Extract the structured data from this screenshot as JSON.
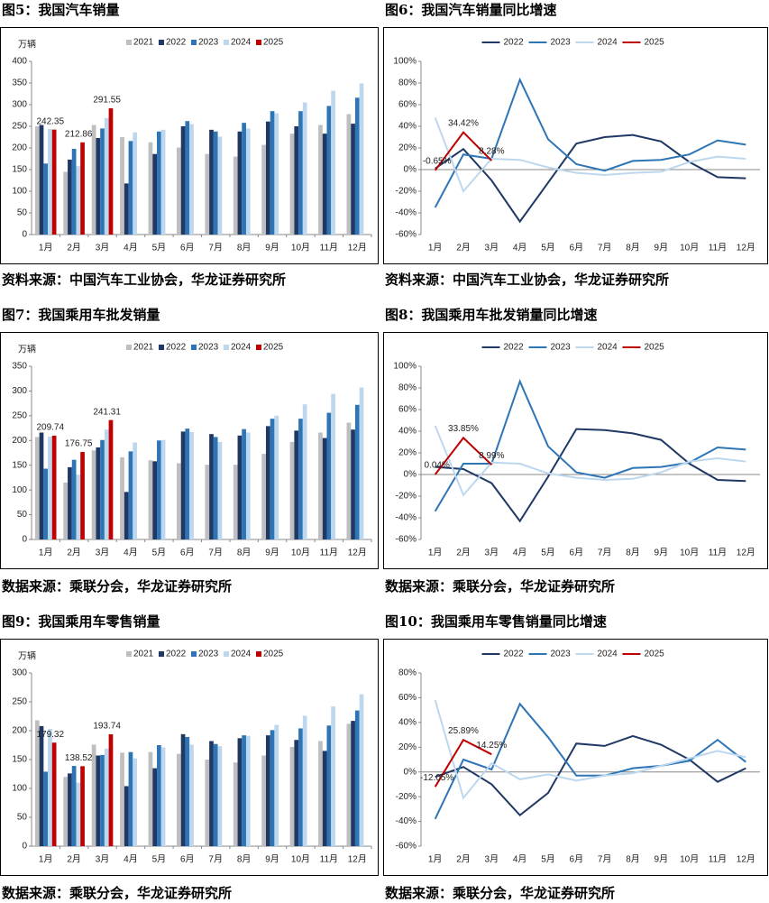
{
  "chart_data": [
    {
      "type": "bar",
      "title": "图5：我国汽车销量",
      "source": "资料来源：中国汽车工业协会，华龙证券研究所",
      "y_label": "万辆",
      "categories": [
        "1月",
        "2月",
        "3月",
        "4月",
        "5月",
        "6月",
        "7月",
        "8月",
        "9月",
        "10月",
        "11月",
        "12月"
      ],
      "series": [
        {
          "name": "2021",
          "color": "#bfbfbf",
          "values": [
            250,
            145,
            253,
            225,
            213,
            201,
            186,
            180,
            207,
            233,
            253,
            278
          ]
        },
        {
          "name": "2022",
          "color": "#1f3864",
          "values": [
            253,
            173,
            223,
            118,
            186,
            250,
            242,
            238,
            261,
            250,
            233,
            256
          ]
        },
        {
          "name": "2023",
          "color": "#2e75b6",
          "values": [
            164,
            198,
            245,
            216,
            238,
            262,
            238,
            258,
            285,
            285,
            297,
            316
          ]
        },
        {
          "name": "2024",
          "color": "#bdd7ee",
          "values": [
            244,
            158,
            269,
            236,
            242,
            255,
            226,
            245,
            280,
            305,
            332,
            349
          ]
        },
        {
          "name": "2025",
          "color": "#c00000",
          "values": [
            242.35,
            212.86,
            291.55,
            null,
            null,
            null,
            null,
            null,
            null,
            null,
            null,
            null
          ]
        }
      ],
      "ylim": [
        0,
        400
      ],
      "yticks": [
        0,
        50,
        100,
        150,
        200,
        250,
        300,
        350,
        400
      ],
      "grid": false,
      "legend": "top"
    },
    {
      "type": "line",
      "title": "图6：我国汽车销量同比增速",
      "source": "资料来源：中国汽车工业协会，华龙证券研究所",
      "categories": [
        "1月",
        "2月",
        "3月",
        "4月",
        "5月",
        "6月",
        "7月",
        "8月",
        "9月",
        "10月",
        "11月",
        "12月"
      ],
      "series": [
        {
          "name": "2022",
          "color": "#1f3864",
          "values": [
            1,
            19,
            -10,
            -48,
            -12,
            24,
            30,
            32,
            26,
            7,
            -7,
            -8
          ]
        },
        {
          "name": "2023",
          "color": "#2e75b6",
          "values": [
            -35,
            14,
            10,
            83,
            28,
            5,
            -1,
            8,
            9,
            14,
            27,
            23
          ]
        },
        {
          "name": "2024",
          "color": "#bdd7ee",
          "values": [
            48,
            -20,
            10,
            9,
            2,
            -3,
            -5,
            -3,
            -2,
            7,
            12,
            10
          ]
        },
        {
          "name": "2025",
          "color": "#c00000",
          "values": [
            -0.65,
            34.42,
            8.28,
            null,
            null,
            null,
            null,
            null,
            null,
            null,
            null,
            null
          ],
          "value_labels": [
            "-0.65%",
            "34.42%",
            "8.28%",
            null,
            null,
            null,
            null,
            null,
            null,
            null,
            null,
            null
          ]
        }
      ],
      "ylim": [
        -60,
        100
      ],
      "yticks": [
        {
          "value": -60,
          "label": "-60%"
        },
        {
          "value": -40,
          "label": "-40%"
        },
        {
          "value": -20,
          "label": "-20%"
        },
        {
          "value": 0,
          "label": "0%"
        },
        {
          "value": 20,
          "label": "20%"
        },
        {
          "value": 40,
          "label": "40%"
        },
        {
          "value": 60,
          "label": "60%"
        },
        {
          "value": 80,
          "label": "80%"
        },
        {
          "value": 100,
          "label": "100%"
        }
      ],
      "grid": false,
      "legend": "top"
    },
    {
      "type": "bar",
      "title": "图7：我国乘用车批发销量",
      "source": "数据来源：乘联分会，华龙证券研究所",
      "y_label": "万辆",
      "categories": [
        "1月",
        "2月",
        "3月",
        "4月",
        "5月",
        "6月",
        "7月",
        "8月",
        "9月",
        "10月",
        "11月",
        "12月"
      ],
      "series": [
        {
          "name": "2021",
          "color": "#bfbfbf",
          "values": [
            207,
            115,
            180,
            166,
            160,
            154,
            151,
            151,
            173,
            197,
            216,
            236
          ]
        },
        {
          "name": "2022",
          "color": "#1f3864",
          "values": [
            216,
            146,
            186,
            96,
            158,
            218,
            213,
            210,
            229,
            220,
            205,
            222
          ]
        },
        {
          "name": "2023",
          "color": "#2e75b6",
          "values": [
            143,
            161,
            201,
            178,
            200,
            224,
            207,
            223,
            244,
            244,
            256,
            272
          ]
        },
        {
          "name": "2024",
          "color": "#bdd7ee",
          "values": [
            208,
            131,
            222,
            196,
            201,
            217,
            197,
            216,
            250,
            273,
            294,
            307
          ]
        },
        {
          "name": "2025",
          "color": "#c00000",
          "values": [
            209.74,
            176.75,
            241.31,
            null,
            null,
            null,
            null,
            null,
            null,
            null,
            null,
            null
          ]
        }
      ],
      "ylim": [
        0,
        350
      ],
      "yticks": [
        0,
        50,
        100,
        150,
        200,
        250,
        300,
        350
      ],
      "grid": false,
      "legend": "top"
    },
    {
      "type": "line",
      "title": "图8：我国乘用车批发销量同比增速",
      "source": "数据来源：乘联分会，华龙证券研究所",
      "categories": [
        "1月",
        "2月",
        "3月",
        "4月",
        "5月",
        "6月",
        "7月",
        "8月",
        "9月",
        "10月",
        "11月",
        "12月"
      ],
      "series": [
        {
          "name": "2022",
          "color": "#1f3864",
          "values": [
            7,
            5,
            -8,
            -43,
            -2,
            42,
            41,
            38,
            32,
            10,
            -5,
            -6
          ]
        },
        {
          "name": "2023",
          "color": "#2e75b6",
          "values": [
            -34,
            10,
            10,
            86,
            26,
            2,
            -3,
            6,
            7,
            11,
            25,
            23
          ]
        },
        {
          "name": "2024",
          "color": "#bdd7ee",
          "values": [
            45,
            -19,
            11,
            10,
            1,
            -3,
            -5,
            -4,
            2,
            12,
            15,
            12
          ]
        },
        {
          "name": "2025",
          "color": "#c00000",
          "values": [
            0.04,
            33.85,
            8.99,
            null,
            null,
            null,
            null,
            null,
            null,
            null,
            null,
            null
          ],
          "value_labels": [
            "0.04%",
            "33.85%",
            "8.99%",
            null,
            null,
            null,
            null,
            null,
            null,
            null,
            null,
            null
          ]
        }
      ],
      "ylim": [
        -60,
        100
      ],
      "yticks": [
        {
          "value": -60,
          "label": "-60%"
        },
        {
          "value": -40,
          "label": "-40%"
        },
        {
          "value": -20,
          "label": "-20%"
        },
        {
          "value": 0,
          "label": "0%"
        },
        {
          "value": 20,
          "label": "20%"
        },
        {
          "value": 40,
          "label": "40%"
        },
        {
          "value": 60,
          "label": "60%"
        },
        {
          "value": 80,
          "label": "80%"
        },
        {
          "value": 100,
          "label": "100%"
        }
      ],
      "grid": false,
      "legend": "top"
    },
    {
      "type": "bar",
      "title": "图9：我国乘用车零售销量",
      "source": "数据来源：乘联分会，华龙证券研究所",
      "y_label": "万辆",
      "categories": [
        "1月",
        "2月",
        "3月",
        "4月",
        "5月",
        "6月",
        "7月",
        "8月",
        "9月",
        "10月",
        "11月",
        "12月"
      ],
      "series": [
        {
          "name": "2021",
          "color": "#bfbfbf",
          "values": [
            218,
            120,
            176,
            162,
            163,
            160,
            150,
            145,
            157,
            172,
            182,
            212
          ]
        },
        {
          "name": "2022",
          "color": "#1f3864",
          "values": [
            208,
            126,
            157,
            104,
            135,
            194,
            182,
            187,
            192,
            184,
            165,
            217
          ]
        },
        {
          "name": "2023",
          "color": "#2e75b6",
          "values": [
            129,
            139,
            158,
            163,
            175,
            189,
            177,
            192,
            201,
            204,
            209,
            235
          ]
        },
        {
          "name": "2024",
          "color": "#bdd7ee",
          "values": [
            203,
            110,
            169,
            152,
            171,
            176,
            173,
            191,
            210,
            226,
            242,
            263
          ]
        },
        {
          "name": "2025",
          "color": "#c00000",
          "values": [
            179.32,
            138.52,
            193.74,
            null,
            null,
            null,
            null,
            null,
            null,
            null,
            null,
            null
          ]
        }
      ],
      "ylim": [
        0,
        300
      ],
      "yticks": [
        0,
        50,
        100,
        150,
        200,
        250,
        300
      ],
      "grid": false,
      "legend": "top"
    },
    {
      "type": "line",
      "title": "图10：我国乘用车零售销量同比增速",
      "source": "数据来源：乘联分会，华龙证券研究所",
      "categories": [
        "1月",
        "2月",
        "3月",
        "4月",
        "5月",
        "6月",
        "7月",
        "8月",
        "9月",
        "10月",
        "11月",
        "12月"
      ],
      "series": [
        {
          "name": "2022",
          "color": "#1f3864",
          "values": [
            -4,
            4,
            -10,
            -35,
            -17,
            23,
            21,
            29,
            22,
            10,
            -8,
            3
          ]
        },
        {
          "name": "2023",
          "color": "#2e75b6",
          "values": [
            -38,
            10,
            2,
            55,
            28,
            -3,
            -3,
            3,
            5,
            9,
            26,
            8
          ]
        },
        {
          "name": "2024",
          "color": "#bdd7ee",
          "values": [
            58,
            -21,
            7,
            -6,
            -2,
            -7,
            -3,
            -1,
            5,
            11,
            17,
            12
          ]
        },
        {
          "name": "2025",
          "color": "#c00000",
          "values": [
            -12.05,
            25.89,
            14.25,
            null,
            null,
            null,
            null,
            null,
            null,
            null,
            null,
            null
          ],
          "value_labels": [
            "-12.05%",
            "25.89%",
            "14.25%",
            null,
            null,
            null,
            null,
            null,
            null,
            null,
            null,
            null
          ]
        }
      ],
      "ylim": [
        -60,
        80
      ],
      "yticks": [
        {
          "value": -60,
          "label": "-60%"
        },
        {
          "value": -40,
          "label": "-40%"
        },
        {
          "value": -20,
          "label": "-20%"
        },
        {
          "value": 0,
          "label": "0%"
        },
        {
          "value": 20,
          "label": "20%"
        },
        {
          "value": 40,
          "label": "40%"
        },
        {
          "value": 60,
          "label": "60%"
        },
        {
          "value": 80,
          "label": "80%"
        }
      ],
      "grid": false,
      "legend": "top"
    }
  ]
}
